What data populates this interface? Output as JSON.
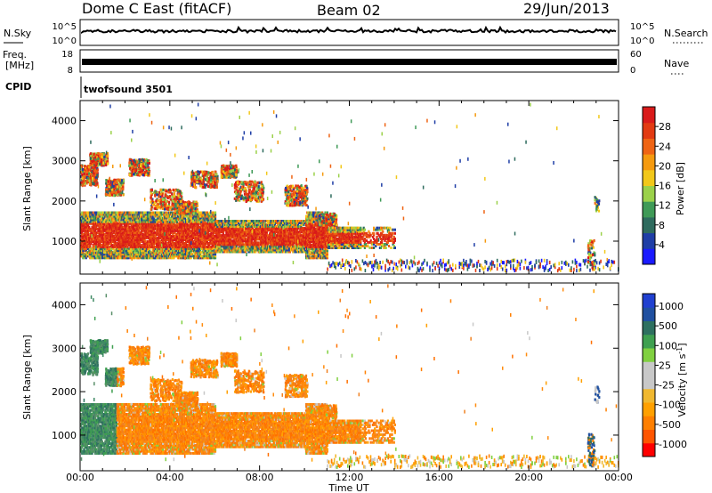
{
  "header": {
    "station": "Dome C East (fitACF)",
    "beam": "Beam 02",
    "date": "29/Jun/2013"
  },
  "strip_panels": {
    "nsky": {
      "label": "N.Sky",
      "ticks": [
        "10^5",
        "10^0"
      ],
      "right_label": "N.Search",
      "right_ticks": [
        "10^5",
        "10^0"
      ]
    },
    "freq": {
      "label_line1": "Freq.",
      "label_line2": "[MHz]",
      "ticks": [
        "18",
        "8"
      ],
      "right_label": "Nave",
      "right_ticks": [
        "60",
        "0"
      ]
    },
    "cpid": {
      "label": "CPID",
      "program": "twofsound 3501"
    }
  },
  "colors": {
    "power": [
      "#1a1aff",
      "#1f3ea6",
      "#2e6b5e",
      "#3f9a57",
      "#9bd14a",
      "#f2c81a",
      "#f59a0f",
      "#ef6414",
      "#e23a12",
      "#d91a1a"
    ],
    "velocity": [
      "#ff0000",
      "#ff5500",
      "#ff7f00",
      "#ffa000",
      "#f0b830",
      "#c8c8c8",
      "#c8c8c8",
      "#80d040",
      "#3fa050",
      "#2e7060",
      "#2050a0",
      "#2040d0"
    ]
  },
  "chart_data": [
    {
      "type": "heatmap",
      "name": "Power",
      "xlabel": "",
      "ylabel": "Slant Range [km]",
      "x_ticks": [
        "00:00",
        "04:00",
        "08:00",
        "12:00",
        "16:00",
        "20:00",
        "00:00"
      ],
      "xlim_hours": [
        0,
        24
      ],
      "ylim": [
        180,
        4500
      ],
      "y_ticks": [
        1000,
        2000,
        3000,
        4000
      ],
      "colorbar": {
        "label": "Power [dB]",
        "ticks": [
          4,
          8,
          12,
          16,
          20,
          24,
          28
        ],
        "range": [
          0,
          32
        ]
      }
    },
    {
      "type": "heatmap",
      "name": "Velocity",
      "xlabel": "Time UT",
      "ylabel": "Slant Range [km]",
      "x_ticks": [
        "00:00",
        "04:00",
        "08:00",
        "12:00",
        "16:00",
        "20:00",
        "00:00"
      ],
      "xlim_hours": [
        0,
        24
      ],
      "ylim": [
        180,
        4500
      ],
      "y_ticks": [
        1000,
        2000,
        3000,
        4000
      ],
      "colorbar": {
        "label": "Velocity [m s",
        "label_exponent": "-1",
        "label_close": "]",
        "ticks": [
          "1000",
          "500",
          "100",
          "25",
          "-25",
          "-100",
          "-500",
          "-1000"
        ]
      }
    }
  ]
}
